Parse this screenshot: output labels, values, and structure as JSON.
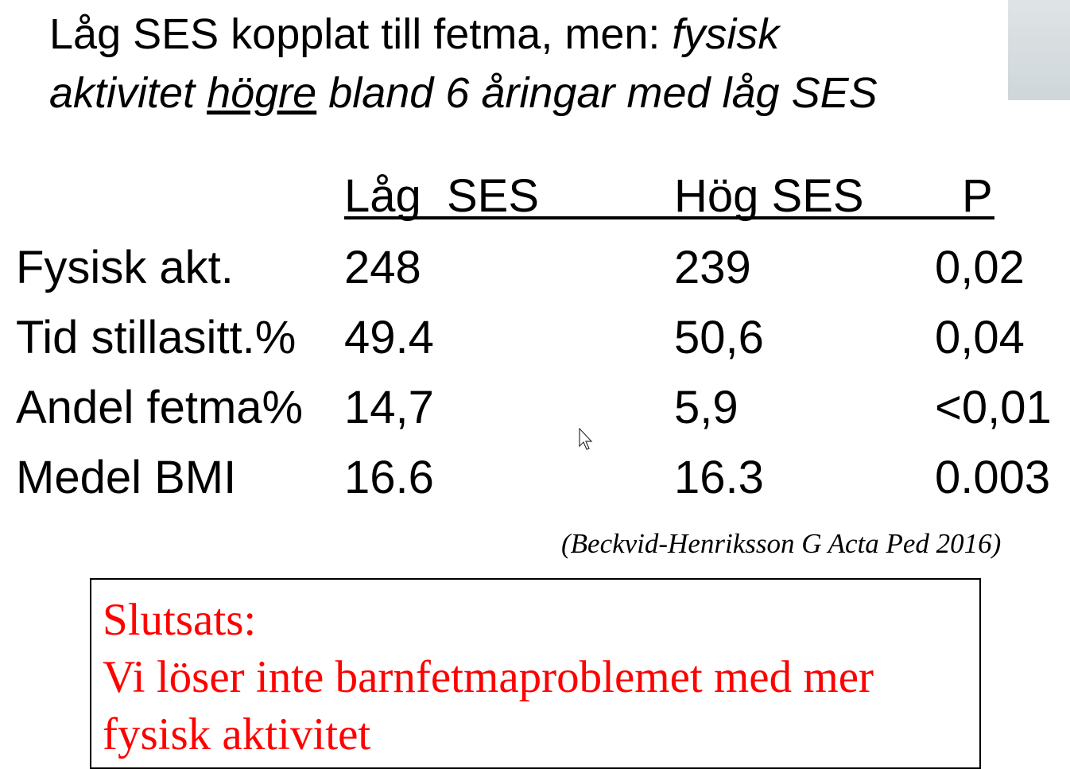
{
  "title": {
    "part1": "Låg SES kopplat till fetma, men: ",
    "italic1": "fysisk",
    "italic2": "aktivitet ",
    "underlined": "högre",
    "italic3": " bland 6 åringar med låg SES"
  },
  "table": {
    "headers": [
      "Låg  SES",
      "Hög SES",
      "P"
    ],
    "rows": [
      {
        "label": "Fysisk akt.",
        "low": "248",
        "high": "239",
        "p": "0,02"
      },
      {
        "label": "Tid stillasitt.%",
        "low": "49.4",
        "high": "50,6",
        "p": "0,04"
      },
      {
        "label": "Andel fetma%",
        "low": "14,7",
        "high": "5,9",
        "p": "<0,01"
      },
      {
        "label": "Medel BMI",
        "low": "16.6",
        "high": "16.3",
        "p": "0.003"
      }
    ]
  },
  "citation": "(Beckvid-Henriksson G Acta Ped 2016)",
  "conclusion": {
    "heading": "Slutsats:",
    "line1": "Vi löser inte barnfetmaproblemet med mer",
    "line2": "fysisk aktivitet"
  }
}
